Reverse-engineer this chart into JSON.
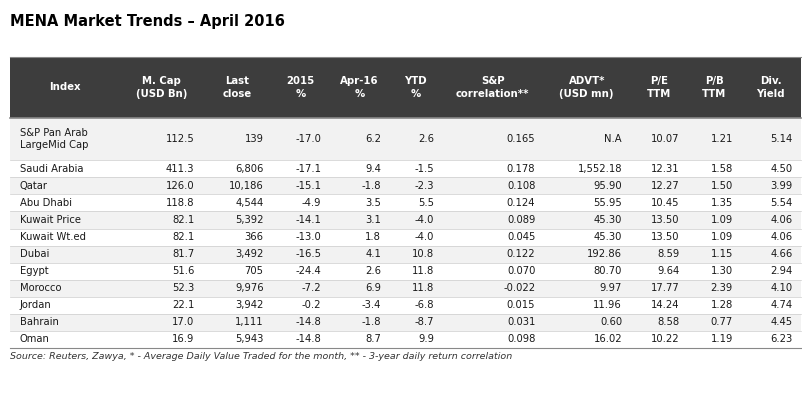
{
  "title": "MENA Market Trends – April 2016",
  "col_headers_line1": [
    "",
    "M. Cap",
    "Last",
    "2015",
    "Apr-16",
    "YTD",
    "S&P",
    "ADVT*",
    "P/E",
    "P/B",
    "Div."
  ],
  "col_headers_line2": [
    "Index",
    "(USD Bn)",
    "close",
    "%",
    "%",
    "%",
    "correlation**",
    "(USD mn)",
    "TTM",
    "TTM",
    "Yield"
  ],
  "rows": [
    [
      "S&P Pan Arab\nLargeMid Cap",
      "112.5",
      "139",
      "-17.0",
      "6.2",
      "2.6",
      "0.165",
      "N.A",
      "10.07",
      "1.21",
      "5.14"
    ],
    [
      "Saudi Arabia",
      "411.3",
      "6,806",
      "-17.1",
      "9.4",
      "-1.5",
      "0.178",
      "1,552.18",
      "12.31",
      "1.58",
      "4.50"
    ],
    [
      "Qatar",
      "126.0",
      "10,186",
      "-15.1",
      "-1.8",
      "-2.3",
      "0.108",
      "95.90",
      "12.27",
      "1.50",
      "3.99"
    ],
    [
      "Abu Dhabi",
      "118.8",
      "4,544",
      "-4.9",
      "3.5",
      "5.5",
      "0.124",
      "55.95",
      "10.45",
      "1.35",
      "5.54"
    ],
    [
      "Kuwait Price",
      "82.1",
      "5,392",
      "-14.1",
      "3.1",
      "-4.0",
      "0.089",
      "45.30",
      "13.50",
      "1.09",
      "4.06"
    ],
    [
      "Kuwait Wt.ed",
      "82.1",
      "366",
      "-13.0",
      "1.8",
      "-4.0",
      "0.045",
      "45.30",
      "13.50",
      "1.09",
      "4.06"
    ],
    [
      "Dubai",
      "81.7",
      "3,492",
      "-16.5",
      "4.1",
      "10.8",
      "0.122",
      "192.86",
      "8.59",
      "1.15",
      "4.66"
    ],
    [
      "Egypt",
      "51.6",
      "705",
      "-24.4",
      "2.6",
      "11.8",
      "0.070",
      "80.70",
      "9.64",
      "1.30",
      "2.94"
    ],
    [
      "Morocco",
      "52.3",
      "9,976",
      "-7.2",
      "6.9",
      "11.8",
      "-0.022",
      "9.97",
      "17.77",
      "2.39",
      "4.10"
    ],
    [
      "Jordan",
      "22.1",
      "3,942",
      "-0.2",
      "-3.4",
      "-6.8",
      "0.015",
      "11.96",
      "14.24",
      "1.28",
      "4.74"
    ],
    [
      "Bahrain",
      "17.0",
      "1,111",
      "-14.8",
      "-1.8",
      "-8.7",
      "0.031",
      "0.60",
      "8.58",
      "0.77",
      "4.45"
    ],
    [
      "Oman",
      "16.9",
      "5,943",
      "-14.8",
      "8.7",
      "9.9",
      "0.098",
      "16.02",
      "10.22",
      "1.19",
      "6.23"
    ]
  ],
  "header_bg": "#3d3d3d",
  "header_fg": "#ffffff",
  "title_color": "#000000",
  "source_text": "Source: Reuters, Zawya, * - Average Daily Value Traded for the month, ** - 3-year daily return correlation",
  "col_alignments": [
    "left",
    "right",
    "right",
    "right",
    "right",
    "right",
    "right",
    "right",
    "right",
    "right",
    "right"
  ],
  "col_widths_rel": [
    1.15,
    0.85,
    0.72,
    0.6,
    0.62,
    0.55,
    1.05,
    0.9,
    0.6,
    0.55,
    0.62
  ]
}
